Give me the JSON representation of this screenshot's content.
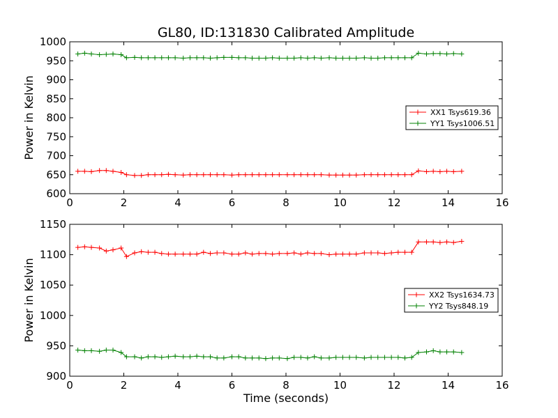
{
  "figure": {
    "title": "GL80, ID:131830 Calibrated Amplitude",
    "xlabel": "Time (seconds)"
  },
  "chart_data": [
    {
      "type": "line",
      "ylabel": "Power in Kelvin",
      "xlim": [
        0,
        16
      ],
      "ylim": [
        600,
        1000
      ],
      "xticks": [
        0,
        2,
        4,
        6,
        8,
        10,
        12,
        14,
        16
      ],
      "yticks": [
        600,
        650,
        700,
        750,
        800,
        850,
        900,
        950,
        1000
      ],
      "grid": false,
      "legend_position": "right",
      "x": [
        0.3,
        0.55,
        0.8,
        1.1,
        1.35,
        1.6,
        1.9,
        2.1,
        2.4,
        2.65,
        2.9,
        3.15,
        3.4,
        3.65,
        3.9,
        4.2,
        4.45,
        4.7,
        4.95,
        5.2,
        5.45,
        5.7,
        6.0,
        6.25,
        6.5,
        6.75,
        7.0,
        7.25,
        7.5,
        7.75,
        8.05,
        8.3,
        8.55,
        8.8,
        9.05,
        9.3,
        9.6,
        9.85,
        10.1,
        10.35,
        10.6,
        10.9,
        11.15,
        11.4,
        11.65,
        11.9,
        12.15,
        12.4,
        12.65,
        12.9,
        13.2,
        13.45,
        13.7,
        13.95,
        14.2,
        14.5
      ],
      "series": [
        {
          "name": "XX1 Tsys619.36",
          "color": "#ff0000",
          "values": [
            659,
            659,
            658,
            661,
            661,
            659,
            656,
            650,
            648,
            648,
            650,
            650,
            650,
            651,
            650,
            649,
            650,
            650,
            650,
            650,
            650,
            650,
            649,
            650,
            650,
            650,
            650,
            650,
            650,
            650,
            650,
            650,
            650,
            650,
            650,
            650,
            649,
            649,
            649,
            649,
            649,
            650,
            650,
            650,
            650,
            650,
            650,
            650,
            650,
            660,
            658,
            659,
            658,
            659,
            658,
            659
          ]
        },
        {
          "name": "YY1 Tsys1006.51",
          "color": "#008000",
          "values": [
            968,
            970,
            968,
            966,
            967,
            968,
            966,
            958,
            959,
            958,
            958,
            958,
            958,
            958,
            958,
            957,
            958,
            958,
            958,
            957,
            958,
            959,
            959,
            958,
            958,
            957,
            957,
            957,
            958,
            957,
            957,
            957,
            958,
            957,
            958,
            957,
            958,
            957,
            957,
            957,
            957,
            958,
            957,
            957,
            958,
            958,
            958,
            958,
            958,
            970,
            968,
            969,
            969,
            968,
            969,
            968
          ]
        }
      ]
    },
    {
      "type": "line",
      "ylabel": "Power in Kelvin",
      "xlim": [
        0,
        16
      ],
      "ylim": [
        900,
        1150
      ],
      "xticks": [
        0,
        2,
        4,
        6,
        8,
        10,
        12,
        14,
        16
      ],
      "yticks": [
        900,
        950,
        1000,
        1050,
        1100,
        1150
      ],
      "grid": false,
      "legend_position": "right",
      "x": [
        0.3,
        0.55,
        0.8,
        1.1,
        1.35,
        1.6,
        1.9,
        2.1,
        2.4,
        2.65,
        2.9,
        3.15,
        3.4,
        3.65,
        3.9,
        4.2,
        4.45,
        4.7,
        4.95,
        5.2,
        5.45,
        5.7,
        6.0,
        6.25,
        6.5,
        6.75,
        7.0,
        7.25,
        7.5,
        7.75,
        8.05,
        8.3,
        8.55,
        8.8,
        9.05,
        9.3,
        9.6,
        9.85,
        10.1,
        10.35,
        10.6,
        10.9,
        11.15,
        11.4,
        11.65,
        11.9,
        12.15,
        12.4,
        12.65,
        12.9,
        13.2,
        13.45,
        13.7,
        13.95,
        14.2,
        14.5
      ],
      "series": [
        {
          "name": "XX2 Tsys1634.73",
          "color": "#ff0000",
          "values": [
            1112,
            1113,
            1112,
            1111,
            1106,
            1108,
            1111,
            1097,
            1103,
            1105,
            1104,
            1104,
            1102,
            1101,
            1101,
            1101,
            1101,
            1101,
            1104,
            1102,
            1103,
            1103,
            1101,
            1101,
            1103,
            1101,
            1102,
            1102,
            1101,
            1102,
            1102,
            1103,
            1101,
            1103,
            1102,
            1102,
            1100,
            1101,
            1101,
            1101,
            1101,
            1103,
            1103,
            1103,
            1102,
            1103,
            1104,
            1104,
            1104,
            1121,
            1121,
            1121,
            1120,
            1121,
            1120,
            1122
          ]
        },
        {
          "name": "YY2 Tsys848.19",
          "color": "#008000",
          "values": [
            943,
            942,
            942,
            941,
            943,
            943,
            939,
            932,
            932,
            930,
            932,
            932,
            931,
            932,
            933,
            932,
            932,
            933,
            932,
            932,
            930,
            930,
            932,
            932,
            930,
            930,
            930,
            929,
            930,
            930,
            929,
            931,
            931,
            930,
            932,
            930,
            930,
            931,
            931,
            931,
            931,
            930,
            931,
            931,
            931,
            931,
            931,
            930,
            931,
            939,
            940,
            942,
            940,
            940,
            940,
            939
          ]
        }
      ]
    }
  ]
}
